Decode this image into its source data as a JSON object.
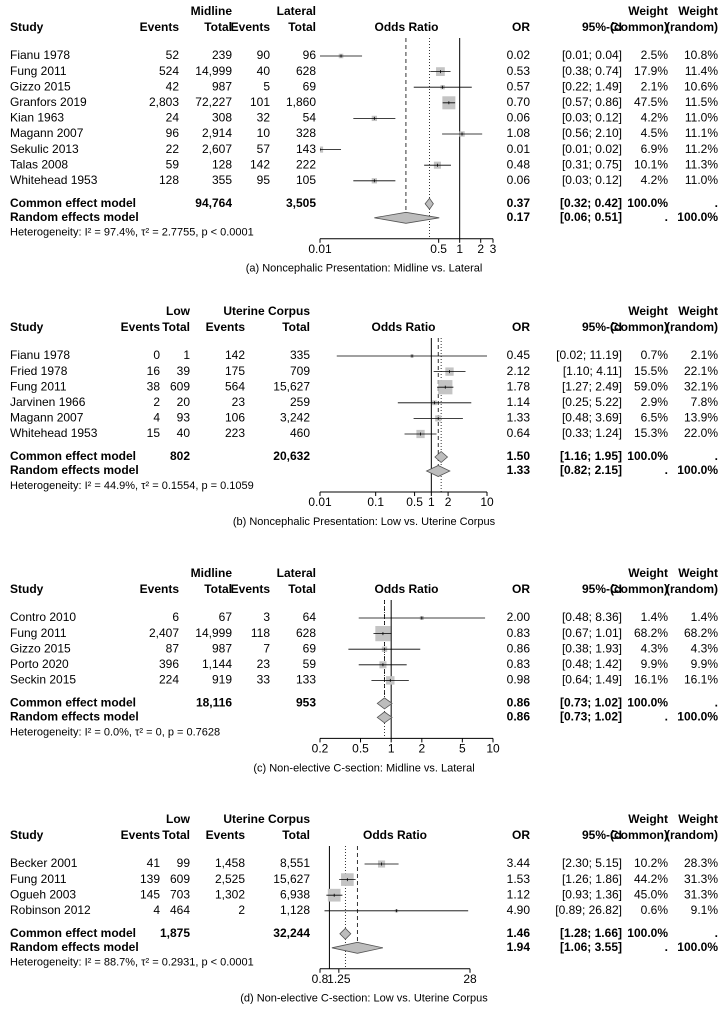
{
  "chart_data": [
    {
      "type": "forest",
      "x_scale": "log",
      "reference_line": 1,
      "group1": "Midline",
      "group2": "Lateral",
      "columns": [
        "Study",
        "Events",
        "Total",
        "Events",
        "Total",
        "Odds Ratio",
        "OR",
        "95%-CI"
      ],
      "weight_common_header": [
        "Weight",
        "(common)"
      ],
      "weight_random_header": [
        "Weight",
        "(random)"
      ],
      "rows": [
        {
          "study": "Fianu 1978",
          "e1": "52",
          "n1": "239",
          "e2": "90",
          "n2": "96",
          "or": 0.02,
          "or_label": "0.02",
          "ci": [
            0.01,
            0.04
          ],
          "ci_label": "[0.01; 0.04]",
          "w_common": {
            "value": 2.5,
            "label": "2.5%"
          },
          "w_random": {
            "value": 10.8,
            "label": "10.8%"
          }
        },
        {
          "study": "Fung 2011",
          "e1": "524",
          "n1": "14,999",
          "e2": "40",
          "n2": "628",
          "or": 0.53,
          "or_label": "0.53",
          "ci": [
            0.38,
            0.74
          ],
          "ci_label": "[0.38; 0.74]",
          "w_common": {
            "value": 17.9,
            "label": "17.9%"
          },
          "w_random": {
            "value": 11.4,
            "label": "11.4%"
          }
        },
        {
          "study": "Gizzo 2015",
          "e1": "42",
          "n1": "987",
          "e2": "5",
          "n2": "69",
          "or": 0.57,
          "or_label": "0.57",
          "ci": [
            0.22,
            1.49
          ],
          "ci_label": "[0.22; 1.49]",
          "w_common": {
            "value": 2.1,
            "label": "2.1%"
          },
          "w_random": {
            "value": 10.6,
            "label": "10.6%"
          }
        },
        {
          "study": "Granfors 2019",
          "e1": "2,803",
          "n1": "72,227",
          "e2": "101",
          "n2": "1,860",
          "or": 0.7,
          "or_label": "0.70",
          "ci": [
            0.57,
            0.86
          ],
          "ci_label": "[0.57; 0.86]",
          "w_common": {
            "value": 47.5,
            "label": "47.5%"
          },
          "w_random": {
            "value": 11.5,
            "label": "11.5%"
          }
        },
        {
          "study": "Kian 1963",
          "e1": "24",
          "n1": "308",
          "e2": "32",
          "n2": "54",
          "or": 0.06,
          "or_label": "0.06",
          "ci": [
            0.03,
            0.12
          ],
          "ci_label": "[0.03; 0.12]",
          "w_common": {
            "value": 4.2,
            "label": "4.2%"
          },
          "w_random": {
            "value": 11.0,
            "label": "11.0%"
          }
        },
        {
          "study": "Magann 2007",
          "e1": "96",
          "n1": "2,914",
          "e2": "10",
          "n2": "328",
          "or": 1.08,
          "or_label": "1.08",
          "ci": [
            0.56,
            2.1
          ],
          "ci_label": "[0.56; 2.10]",
          "w_common": {
            "value": 4.5,
            "label": "4.5%"
          },
          "w_random": {
            "value": 11.1,
            "label": "11.1%"
          }
        },
        {
          "study": "Sekulic 2013",
          "e1": "22",
          "n1": "2,607",
          "e2": "57",
          "n2": "143",
          "or": 0.01,
          "or_label": "0.01",
          "ci": [
            0.01,
            0.02
          ],
          "ci_label": "[0.01; 0.02]",
          "w_common": {
            "value": 6.9,
            "label": "6.9%"
          },
          "w_random": {
            "value": 11.2,
            "label": "11.2%"
          }
        },
        {
          "study": "Talas 2008",
          "e1": "59",
          "n1": "128",
          "e2": "142",
          "n2": "222",
          "or": 0.48,
          "or_label": "0.48",
          "ci": [
            0.31,
            0.75
          ],
          "ci_label": "[0.31; 0.75]",
          "w_common": {
            "value": 10.1,
            "label": "10.1%"
          },
          "w_random": {
            "value": 11.3,
            "label": "11.3%"
          }
        },
        {
          "study": "Whitehead 1953",
          "e1": "128",
          "n1": "355",
          "e2": "95",
          "n2": "105",
          "or": 0.06,
          "or_label": "0.06",
          "ci": [
            0.03,
            0.12
          ],
          "ci_label": "[0.03; 0.12]",
          "w_common": {
            "value": 4.2,
            "label": "4.2%"
          },
          "w_random": {
            "value": 11.0,
            "label": "11.0%"
          }
        }
      ],
      "common": {
        "name": "Common effect model",
        "n1": "94,764",
        "n2": "3,505",
        "or": 0.37,
        "or_label": "0.37",
        "ci": [
          0.32,
          0.42
        ],
        "ci_label": "[0.32; 0.42]",
        "w_common": "100.0%",
        "w_random": "."
      },
      "random": {
        "name": "Random effects model",
        "or": 0.17,
        "or_label": "0.17",
        "ci": [
          0.06,
          0.51
        ],
        "ci_label": "[0.06; 0.51]",
        "w_common": ".",
        "w_random": "100.0%"
      },
      "heterogeneity": "Heterogeneity: I² = 97.4%, τ² = 2.7755, p < 0.0001",
      "xlim": [
        0.01,
        3
      ],
      "xticks": [
        0.01,
        0.5,
        1,
        2,
        3
      ],
      "caption": "(a) Noncephalic Presentation: Midline vs. Lateral"
    },
    {
      "type": "forest",
      "x_scale": "log",
      "reference_line": 1,
      "group1": "Low",
      "group2": "Uterine Corpus",
      "columns": [
        "Study",
        "Events",
        "Total",
        "Events",
        "Total",
        "Odds Ratio",
        "OR",
        "95%-CI"
      ],
      "weight_common_header": [
        "Weight",
        "(common)"
      ],
      "weight_random_header": [
        "Weight",
        "(random)"
      ],
      "rows": [
        {
          "study": "Fianu 1978",
          "e1": "0",
          "n1": "1",
          "e2": "142",
          "n2": "335",
          "or": 0.45,
          "or_label": "0.45",
          "ci": [
            0.02,
            11.19
          ],
          "ci_label": "[0.02; 11.19]",
          "w_common": {
            "value": 0.7,
            "label": "0.7%"
          },
          "w_random": {
            "value": 2.1,
            "label": "2.1%"
          }
        },
        {
          "study": "Fried 1978",
          "e1": "16",
          "n1": "39",
          "e2": "175",
          "n2": "709",
          "or": 2.12,
          "or_label": "2.12",
          "ci": [
            1.1,
            4.11
          ],
          "ci_label": "[1.10; 4.11]",
          "w_common": {
            "value": 15.5,
            "label": "15.5%"
          },
          "w_random": {
            "value": 22.1,
            "label": "22.1%"
          }
        },
        {
          "study": "Fung 2011",
          "e1": "38",
          "n1": "609",
          "e2": "564",
          "n2": "15,627",
          "or": 1.78,
          "or_label": "1.78",
          "ci": [
            1.27,
            2.49
          ],
          "ci_label": "[1.27; 2.49]",
          "w_common": {
            "value": 59.0,
            "label": "59.0%"
          },
          "w_random": {
            "value": 32.1,
            "label": "32.1%"
          }
        },
        {
          "study": "Jarvinen 1966",
          "e1": "2",
          "n1": "20",
          "e2": "23",
          "n2": "259",
          "or": 1.14,
          "or_label": "1.14",
          "ci": [
            0.25,
            5.22
          ],
          "ci_label": "[0.25; 5.22]",
          "w_common": {
            "value": 2.9,
            "label": "2.9%"
          },
          "w_random": {
            "value": 7.8,
            "label": "7.8%"
          }
        },
        {
          "study": "Magann 2007",
          "e1": "4",
          "n1": "93",
          "e2": "106",
          "n2": "3,242",
          "or": 1.33,
          "or_label": "1.33",
          "ci": [
            0.48,
            3.69
          ],
          "ci_label": "[0.48; 3.69]",
          "w_common": {
            "value": 6.5,
            "label": "6.5%"
          },
          "w_random": {
            "value": 13.9,
            "label": "13.9%"
          }
        },
        {
          "study": "Whitehead 1953",
          "e1": "15",
          "n1": "40",
          "e2": "223",
          "n2": "460",
          "or": 0.64,
          "or_label": "0.64",
          "ci": [
            0.33,
            1.24
          ],
          "ci_label": "[0.33; 1.24]",
          "w_common": {
            "value": 15.3,
            "label": "15.3%"
          },
          "w_random": {
            "value": 22.0,
            "label": "22.0%"
          }
        }
      ],
      "common": {
        "name": "Common effect model",
        "n1": "802",
        "n2": "20,632",
        "or": 1.5,
        "or_label": "1.50",
        "ci": [
          1.16,
          1.95
        ],
        "ci_label": "[1.16; 1.95]",
        "w_common": "100.0%",
        "w_random": "."
      },
      "random": {
        "name": "Random effects model",
        "or": 1.33,
        "or_label": "1.33",
        "ci": [
          0.82,
          2.15
        ],
        "ci_label": "[0.82; 2.15]",
        "w_common": ".",
        "w_random": "100.0%"
      },
      "heterogeneity": "Heterogeneity: I² = 44.9%, τ² = 0.1554, p = 0.1059",
      "xlim": [
        0.01,
        10
      ],
      "xticks": [
        0.01,
        0.1,
        0.5,
        1,
        2,
        10
      ],
      "caption": "(b) Noncephalic Presentation: Low vs. Uterine Corpus"
    },
    {
      "type": "forest",
      "x_scale": "log",
      "reference_line": 1,
      "group1": "Midline",
      "group2": "Lateral",
      "columns": [
        "Study",
        "Events",
        "Total",
        "Events",
        "Total",
        "Odds Ratio",
        "OR",
        "95%-CI"
      ],
      "weight_common_header": [
        "Weight",
        "(common)"
      ],
      "weight_random_header": [
        "Weight",
        "(random)"
      ],
      "rows": [
        {
          "study": "Contro 2010",
          "e1": "6",
          "n1": "67",
          "e2": "3",
          "n2": "64",
          "or": 2.0,
          "or_label": "2.00",
          "ci": [
            0.48,
            8.36
          ],
          "ci_label": "[0.48; 8.36]",
          "w_common": {
            "value": 1.4,
            "label": "1.4%"
          },
          "w_random": {
            "value": 1.4,
            "label": "1.4%"
          }
        },
        {
          "study": "Fung 2011",
          "e1": "2,407",
          "n1": "14,999",
          "e2": "118",
          "n2": "628",
          "or": 0.83,
          "or_label": "0.83",
          "ci": [
            0.67,
            1.01
          ],
          "ci_label": "[0.67; 1.01]",
          "w_common": {
            "value": 68.2,
            "label": "68.2%"
          },
          "w_random": {
            "value": 68.2,
            "label": "68.2%"
          }
        },
        {
          "study": "Gizzo 2015",
          "e1": "87",
          "n1": "987",
          "e2": "7",
          "n2": "69",
          "or": 0.86,
          "or_label": "0.86",
          "ci": [
            0.38,
            1.93
          ],
          "ci_label": "[0.38; 1.93]",
          "w_common": {
            "value": 4.3,
            "label": "4.3%"
          },
          "w_random": {
            "value": 4.3,
            "label": "4.3%"
          }
        },
        {
          "study": "Porto 2020",
          "e1": "396",
          "n1": "1,144",
          "e2": "23",
          "n2": "59",
          "or": 0.83,
          "or_label": "0.83",
          "ci": [
            0.48,
            1.42
          ],
          "ci_label": "[0.48; 1.42]",
          "w_common": {
            "value": 9.9,
            "label": "9.9%"
          },
          "w_random": {
            "value": 9.9,
            "label": "9.9%"
          }
        },
        {
          "study": "Seckin 2015",
          "e1": "224",
          "n1": "919",
          "e2": "33",
          "n2": "133",
          "or": 0.98,
          "or_label": "0.98",
          "ci": [
            0.64,
            1.49
          ],
          "ci_label": "[0.64; 1.49]",
          "w_common": {
            "value": 16.1,
            "label": "16.1%"
          },
          "w_random": {
            "value": 16.1,
            "label": "16.1%"
          }
        }
      ],
      "common": {
        "name": "Common effect model",
        "n1": "18,116",
        "n2": "953",
        "or": 0.86,
        "or_label": "0.86",
        "ci": [
          0.73,
          1.02
        ],
        "ci_label": "[0.73; 1.02]",
        "w_common": "100.0%",
        "w_random": "."
      },
      "random": {
        "name": "Random effects model",
        "or": 0.86,
        "or_label": "0.86",
        "ci": [
          0.73,
          1.02
        ],
        "ci_label": "[0.73; 1.02]",
        "w_common": ".",
        "w_random": "100.0%"
      },
      "heterogeneity": "Heterogeneity: I² = 0.0%, τ² = 0, p = 0.7628",
      "xlim": [
        0.2,
        10
      ],
      "xticks": [
        0.2,
        0.5,
        1,
        2,
        5,
        10
      ],
      "caption": "(c) Non-elective C-section: Midline vs. Lateral"
    },
    {
      "type": "forest",
      "x_scale": "log",
      "reference_line": 1,
      "group1": "Low",
      "group2": "Uterine Corpus",
      "columns": [
        "Study",
        "Events",
        "Total",
        "Events",
        "Total",
        "Odds Ratio",
        "OR",
        "95%-CI"
      ],
      "weight_common_header": [
        "Weight",
        "(common)"
      ],
      "weight_random_header": [
        "Weight",
        "(random)"
      ],
      "rows": [
        {
          "study": "Becker 2001",
          "e1": "41",
          "n1": "99",
          "e2": "1,458",
          "n2": "8,551",
          "or": 3.44,
          "or_label": "3.44",
          "ci": [
            2.3,
            5.15
          ],
          "ci_label": "[2.30; 5.15]",
          "w_common": {
            "value": 10.2,
            "label": "10.2%"
          },
          "w_random": {
            "value": 28.3,
            "label": "28.3%"
          }
        },
        {
          "study": "Fung 2011",
          "e1": "139",
          "n1": "609",
          "e2": "2,525",
          "n2": "15,627",
          "or": 1.53,
          "or_label": "1.53",
          "ci": [
            1.26,
            1.86
          ],
          "ci_label": "[1.26; 1.86]",
          "w_common": {
            "value": 44.2,
            "label": "44.2%"
          },
          "w_random": {
            "value": 31.3,
            "label": "31.3%"
          }
        },
        {
          "study": "Ogueh 2003",
          "e1": "145",
          "n1": "703",
          "e2": "1,302",
          "n2": "6,938",
          "or": 1.12,
          "or_label": "1.12",
          "ci": [
            0.93,
            1.36
          ],
          "ci_label": "[0.93; 1.36]",
          "w_common": {
            "value": 45.0,
            "label": "45.0%"
          },
          "w_random": {
            "value": 31.3,
            "label": "31.3%"
          }
        },
        {
          "study": "Robinson 2012",
          "e1": "4",
          "n1": "464",
          "e2": "2",
          "n2": "1,128",
          "or": 4.9,
          "or_label": "4.90",
          "ci": [
            0.89,
            26.82
          ],
          "ci_label": "[0.89; 26.82]",
          "w_common": {
            "value": 0.6,
            "label": "0.6%"
          },
          "w_random": {
            "value": 9.1,
            "label": "9.1%"
          }
        }
      ],
      "common": {
        "name": "Common effect model",
        "n1": "1,875",
        "n2": "32,244",
        "or": 1.46,
        "or_label": "1.46",
        "ci": [
          1.28,
          1.66
        ],
        "ci_label": "[1.28; 1.66]",
        "w_common": "100.0%",
        "w_random": "."
      },
      "random": {
        "name": "Random effects model",
        "or": 1.94,
        "or_label": "1.94",
        "ci": [
          1.06,
          3.55
        ],
        "ci_label": "[1.06; 3.55]",
        "w_common": ".",
        "w_random": "100.0%"
      },
      "heterogeneity": "Heterogeneity: I² = 88.7%, τ² = 0.2931, p < 0.0001",
      "xlim": [
        0.8,
        28
      ],
      "xticks": [
        0.8,
        1.25,
        28
      ],
      "caption": "(d) Non-elective C-section: Low vs. Uterine Corpus"
    }
  ]
}
